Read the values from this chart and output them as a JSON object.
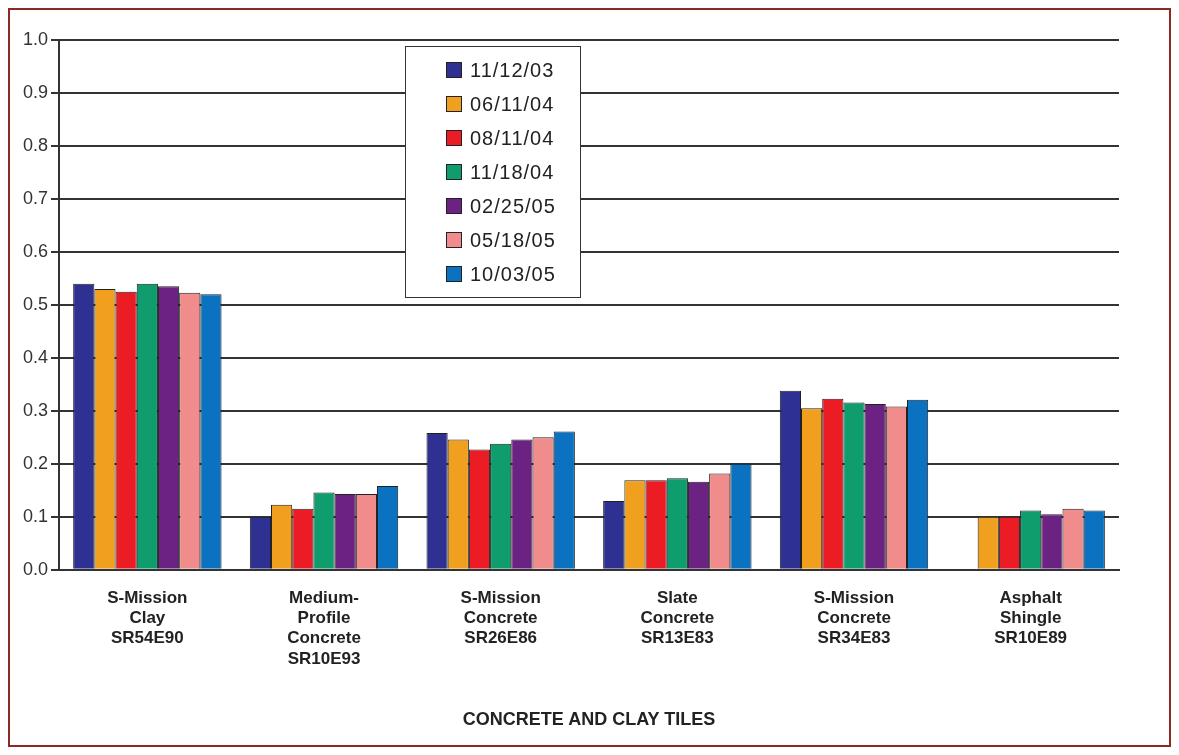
{
  "chart_data": {
    "type": "bar",
    "xlabel": "CONCRETE AND CLAY TILES",
    "categories": [
      "S-Mission\nClay\nSR54E90",
      "Medium-\nProfile\nConcrete\nSR10E93",
      "S-Mission\nConcrete\nSR26E86",
      "Slate\nConcrete\nSR13E83",
      "S-Mission\nConcrete\nSR34E83",
      "Asphalt\nShingle\nSR10E89"
    ],
    "series": [
      {
        "name": "11/12/03",
        "color": "#2e3192",
        "values": [
          0.54,
          0.1,
          0.258,
          0.13,
          0.338,
          null
        ]
      },
      {
        "name": "06/11/04",
        "color": "#f0a01e",
        "values": [
          0.53,
          0.123,
          0.246,
          0.169,
          0.305,
          0.1
        ]
      },
      {
        "name": "08/11/04",
        "color": "#ec1c24",
        "values": [
          0.525,
          0.115,
          0.227,
          0.169,
          0.323,
          0.1
        ]
      },
      {
        "name": "11/18/04",
        "color": "#0f9d6e",
        "values": [
          0.54,
          0.146,
          0.238,
          0.173,
          0.316,
          0.112
        ]
      },
      {
        "name": "02/25/05",
        "color": "#6c2282",
        "values": [
          0.535,
          0.143,
          0.246,
          0.166,
          0.313,
          0.105
        ]
      },
      {
        "name": "05/18/05",
        "color": "#f08c8c",
        "values": [
          0.523,
          0.143,
          0.25,
          0.182,
          0.308,
          0.115
        ]
      },
      {
        "name": "10/03/05",
        "color": "#0a72c0",
        "values": [
          0.52,
          0.158,
          0.261,
          0.2,
          0.321,
          0.112
        ]
      }
    ],
    "ylim": [
      0,
      1
    ],
    "yticks": [
      {
        "value": 0,
        "label": "0.0"
      },
      0.1,
      0.2,
      0.3,
      0.4,
      0.5,
      0.6,
      0.7,
      0.8,
      0.9,
      {
        "value": 1,
        "label": "1.0"
      }
    ],
    "grid": "y",
    "legend": "top"
  }
}
